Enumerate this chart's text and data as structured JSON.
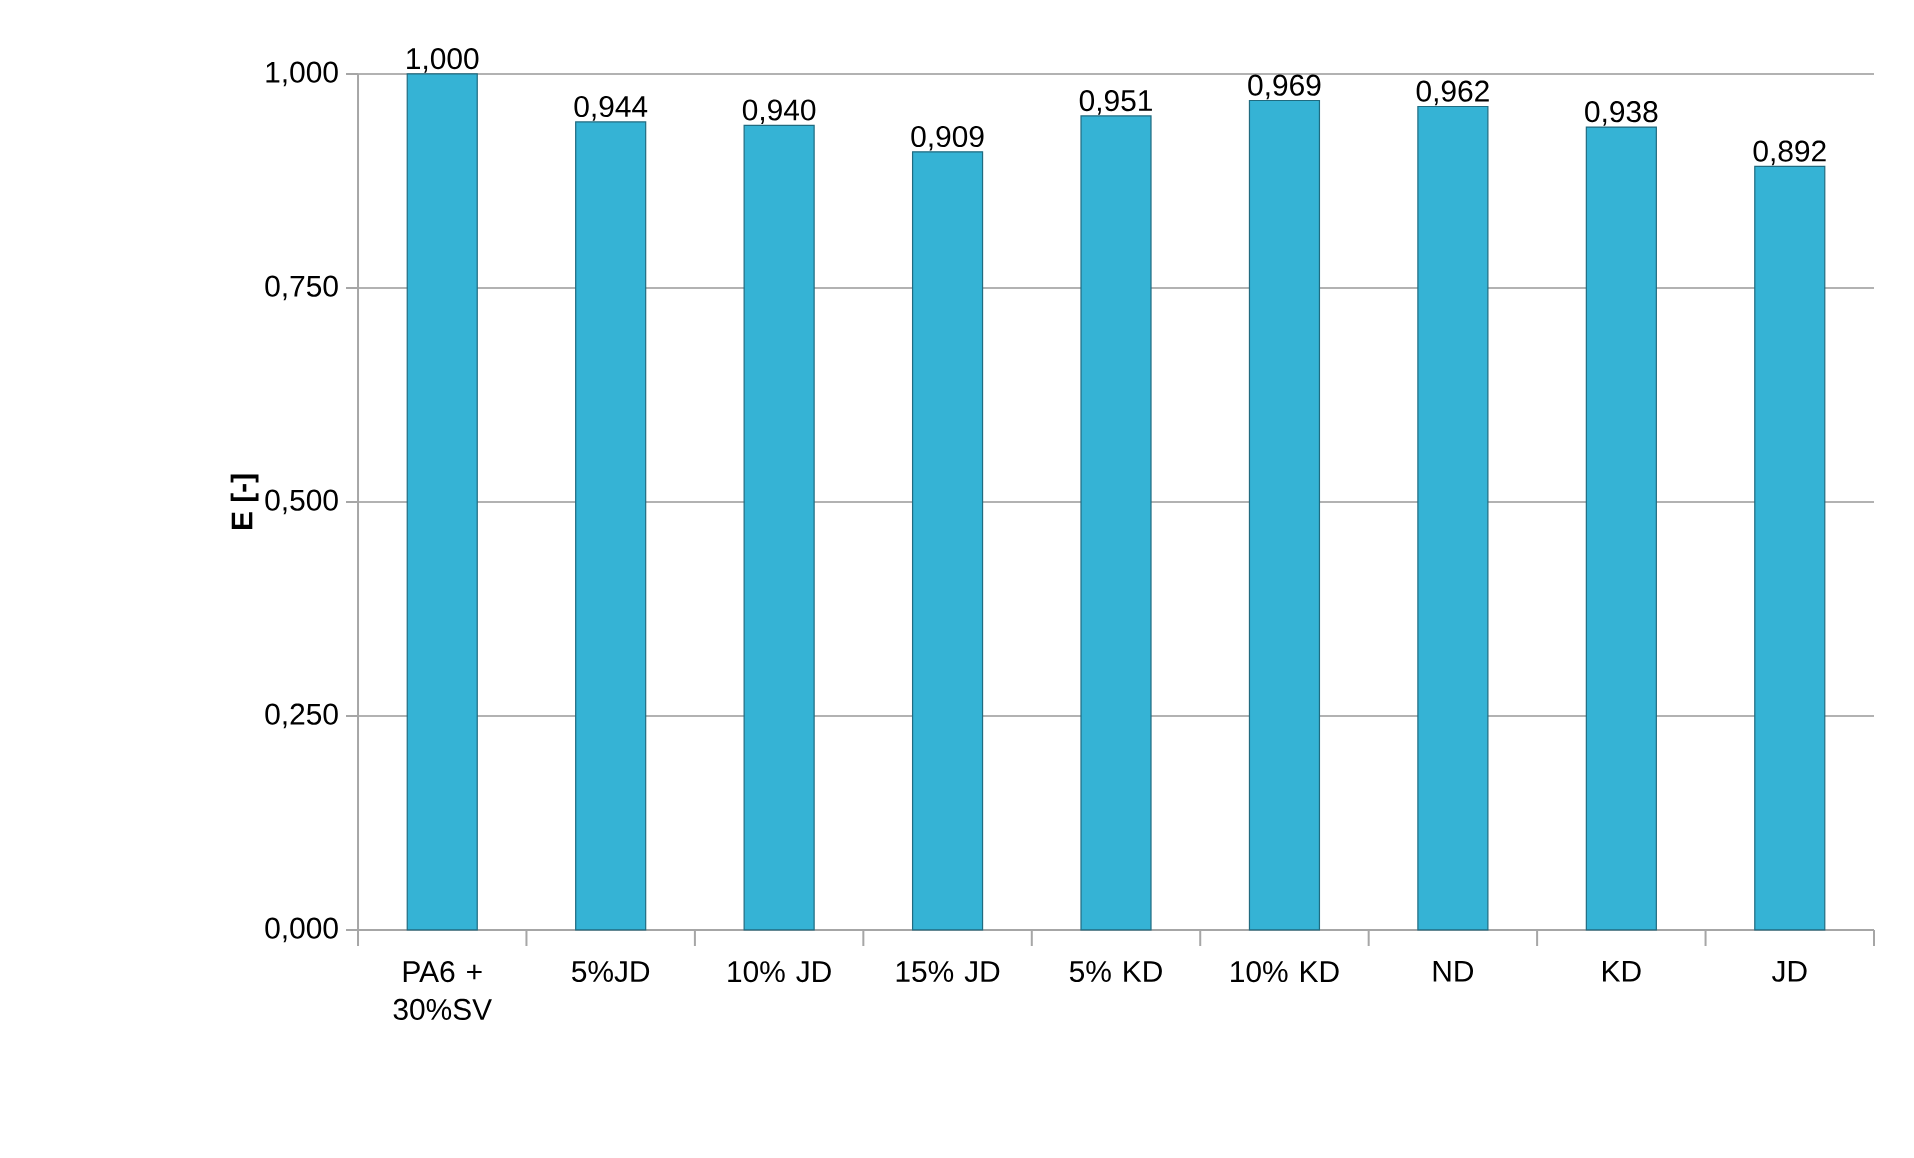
{
  "chart_data": {
    "type": "bar",
    "ylabel": "E [-]",
    "categories": [
      "PA6 + 30%SV",
      "5%JD",
      "10% JD",
      "15% JD",
      "5% KD",
      "10% KD",
      "ND",
      "KD",
      "JD"
    ],
    "values": [
      1.0,
      0.944,
      0.94,
      0.909,
      0.951,
      0.969,
      0.962,
      0.938,
      0.892
    ],
    "value_labels": [
      "1,000",
      "0,944",
      "0,940",
      "0,909",
      "0,951",
      "0,969",
      "0,962",
      "0,938",
      "0,892"
    ],
    "color": "#35b3d5",
    "ylim": [
      0,
      1
    ],
    "yticks": [
      {
        "value": 0,
        "label": "0,000"
      },
      {
        "value": 0.25,
        "label": "0,250"
      },
      {
        "value": 0.5,
        "label": "0,500"
      },
      {
        "value": 0.75,
        "label": "0,750"
      },
      {
        "value": 1,
        "label": "1,000"
      }
    ],
    "grid": "y"
  }
}
